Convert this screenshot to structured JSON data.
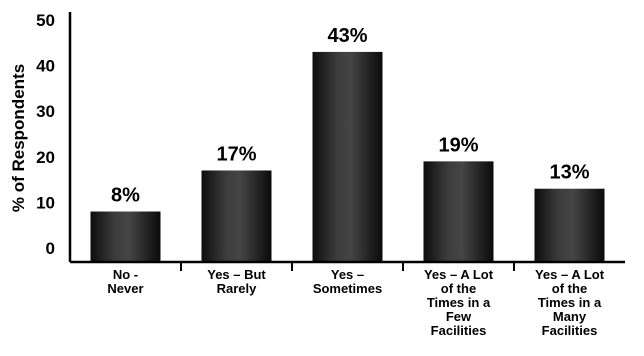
{
  "chart_data": {
    "type": "bar",
    "categories": [
      [
        "No -",
        "Never"
      ],
      [
        "Yes – But",
        "Rarely"
      ],
      [
        "Yes –",
        "Sometimes"
      ],
      [
        "Yes – A Lot",
        "of the",
        "Times in a",
        "Few",
        "Facilities"
      ],
      [
        "Yes – A Lot",
        "of the",
        "Times in a",
        "Many",
        "Facilities"
      ]
    ],
    "values": [
      8,
      17,
      43,
      19,
      13
    ],
    "data_labels": [
      "8%",
      "17%",
      "43%",
      "19%",
      "13%"
    ],
    "ylabel": "% of Respondents",
    "ylim": [
      0,
      50
    ],
    "yticks": [
      0,
      10,
      20,
      30,
      40,
      50
    ],
    "grid": false,
    "legend": "none",
    "bar_color": "#1a1a1a"
  }
}
